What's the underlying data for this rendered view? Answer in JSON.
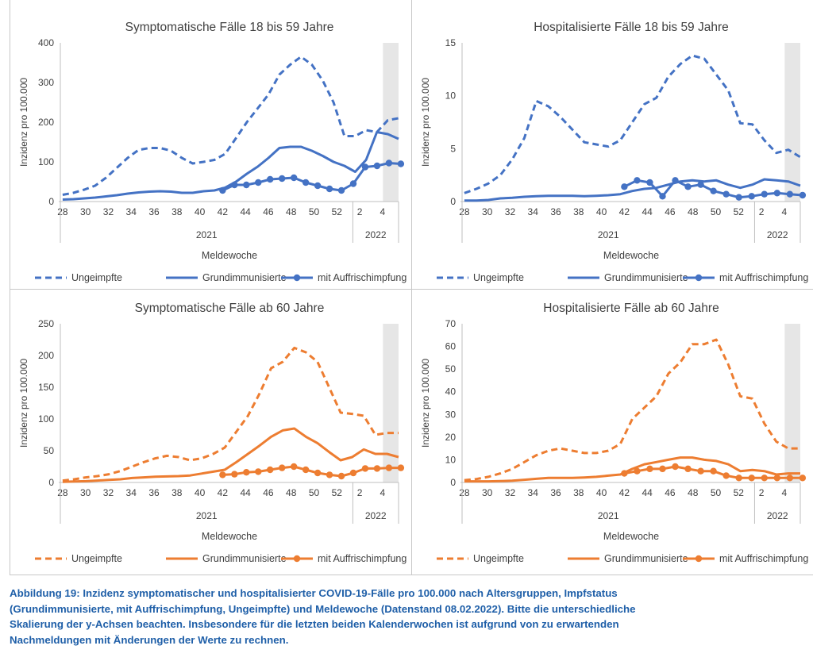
{
  "chart_data": [
    {
      "type": "line",
      "title": "Symptomatische Fälle 18 bis 59 Jahre",
      "ylabel": "Inzidenz pro 100.000",
      "xlabel": "Meldewoche",
      "ylim": [
        0,
        400
      ],
      "yticks": [
        0,
        100,
        200,
        300,
        400
      ],
      "year_labels": [
        "2021",
        "2022"
      ],
      "color": "#4472c4",
      "series": [
        {
          "name": "Ungeimpfte",
          "style": "dashed",
          "values": [
            17,
            22,
            30,
            40,
            60,
            85,
            110,
            130,
            135,
            135,
            128,
            110,
            96,
            100,
            105,
            120,
            160,
            200,
            235,
            270,
            320,
            345,
            365,
            345,
            305,
            250,
            165,
            165,
            180,
            175,
            205,
            210
          ]
        },
        {
          "name": "Grundimmunisierte",
          "style": "solid",
          "values": [
            5,
            6,
            8,
            10,
            13,
            16,
            20,
            23,
            25,
            26,
            25,
            22,
            22,
            26,
            28,
            35,
            50,
            70,
            88,
            110,
            135,
            138,
            138,
            128,
            115,
            100,
            90,
            75,
            105,
            175,
            170,
            158
          ]
        },
        {
          "name": "mit Auffrischimpfung",
          "style": "marker",
          "x_start": 14,
          "values": [
            28,
            42,
            42,
            48,
            56,
            58,
            60,
            48,
            40,
            32,
            28,
            45,
            87,
            90,
            97,
            95
          ]
        }
      ]
    },
    {
      "type": "line",
      "title": "Hospitalisierte Fälle 18 bis 59 Jahre",
      "ylabel": "Inzidenz pro 100.000",
      "xlabel": "Meldewoche",
      "ylim": [
        0,
        15
      ],
      "yticks": [
        0,
        5,
        10,
        15
      ],
      "year_labels": [
        "2021",
        "2022"
      ],
      "color": "#4472c4",
      "series": [
        {
          "name": "Ungeimpfte",
          "style": "dashed",
          "values": [
            0.8,
            1.2,
            1.7,
            2.5,
            4.0,
            6.0,
            9.5,
            9.0,
            8.0,
            6.8,
            5.6,
            5.4,
            5.2,
            5.8,
            7.5,
            9.2,
            9.8,
            11.8,
            13.0,
            13.8,
            13.5,
            12.0,
            10.5,
            7.4,
            7.3,
            5.8,
            4.6,
            4.9,
            4.2
          ]
        },
        {
          "name": "Grundimmunisierte",
          "style": "solid",
          "values": [
            0.1,
            0.1,
            0.15,
            0.3,
            0.35,
            0.45,
            0.5,
            0.55,
            0.55,
            0.55,
            0.5,
            0.55,
            0.6,
            0.7,
            1.0,
            1.2,
            1.3,
            1.6,
            1.9,
            2.0,
            1.9,
            2.0,
            1.6,
            1.3,
            1.6,
            2.1,
            2.0,
            1.9,
            1.5
          ]
        },
        {
          "name": "mit Auffrischimpfung",
          "style": "marker",
          "x_start": 14,
          "values": [
            1.4,
            2.0,
            1.8,
            0.5,
            2.0,
            1.4,
            1.6,
            1.0,
            0.7,
            0.4,
            0.5,
            0.7,
            0.8,
            0.7,
            0.6
          ]
        }
      ]
    },
    {
      "type": "line",
      "title": "Symptomatische Fälle ab 60 Jahre",
      "ylabel": "Inzidenz pro 100.000",
      "xlabel": "Meldewoche",
      "ylim": [
        0,
        250
      ],
      "yticks": [
        0,
        50,
        100,
        150,
        200,
        250
      ],
      "year_labels": [
        "2021",
        "2022"
      ],
      "color": "#ed7d31",
      "series": [
        {
          "name": "Ungeimpfte",
          "style": "dashed",
          "values": [
            3,
            5,
            8,
            10,
            13,
            18,
            25,
            32,
            38,
            42,
            40,
            35,
            38,
            45,
            55,
            80,
            105,
            140,
            180,
            190,
            212,
            205,
            190,
            150,
            110,
            108,
            105,
            75,
            78,
            78
          ]
        },
        {
          "name": "Grundimmunisierte",
          "style": "solid",
          "values": [
            1,
            1.5,
            2,
            3,
            4,
            5,
            7,
            8,
            9,
            9.5,
            10,
            11,
            14,
            17,
            20,
            32,
            45,
            58,
            72,
            82,
            85,
            72,
            62,
            48,
            35,
            40,
            52,
            45,
            45,
            40
          ]
        },
        {
          "name": "mit Auffrischimpfung",
          "style": "marker",
          "x_start": 14,
          "values": [
            12,
            13,
            16,
            17,
            20,
            23,
            25,
            20,
            15,
            12,
            10,
            15,
            22,
            22,
            23,
            23
          ]
        }
      ]
    },
    {
      "type": "line",
      "title": "Hospitalisierte Fälle ab 60 Jahre",
      "ylabel": "Inzidenz pro 100.000",
      "xlabel": "Meldewoche",
      "ylim": [
        0,
        70
      ],
      "yticks": [
        0,
        10,
        20,
        30,
        40,
        50,
        60,
        70
      ],
      "year_labels": [
        "2021",
        "2022"
      ],
      "color": "#ed7d31",
      "series": [
        {
          "name": "Ungeimpfte",
          "style": "dashed",
          "values": [
            1,
            1.5,
            2.5,
            4,
            6,
            9,
            12,
            14,
            15,
            14,
            13,
            13,
            14,
            17,
            28,
            33,
            38,
            48,
            53,
            61,
            61,
            63,
            52,
            38,
            37,
            26,
            18,
            15,
            15
          ]
        },
        {
          "name": "Grundimmunisierte",
          "style": "solid",
          "values": [
            0.5,
            0.5,
            0.5,
            0.6,
            0.8,
            1.2,
            1.6,
            2,
            2,
            2,
            2.2,
            2.5,
            3,
            3.5,
            6,
            8,
            9,
            10,
            11,
            11,
            10,
            9.5,
            8,
            5,
            5.5,
            5,
            3.5,
            4,
            4
          ]
        },
        {
          "name": "mit Auffrischimpfung",
          "style": "marker",
          "x_start": 14,
          "values": [
            4,
            5,
            6,
            6,
            7,
            6,
            5,
            5,
            3,
            2,
            2,
            2,
            2,
            2,
            2
          ]
        }
      ]
    }
  ],
  "x_tick_labels": [
    "28",
    "30",
    "32",
    "34",
    "36",
    "38",
    "40",
    "42",
    "44",
    "46",
    "48",
    "50",
    "52",
    "2",
    "4"
  ],
  "legend": [
    "Ungeimpfte",
    "Grundimmunisierte",
    "mit Auffrischimpfung"
  ],
  "caption": [
    "Abbildung 19: Inzidenz symptomatischer und hospitalisierter COVID-19-Fälle pro 100.000 nach Altersgruppen, Impfstatus",
    "(Grundimmunisierte, mit Auffrischimpfung, Ungeimpfte) und Meldewoche (Datenstand 08.02.2022). Bitte die unterschiedliche",
    "Skalierung der y-Achsen beachten. Insbesondere für die letzten beiden Kalenderwochen ist aufgrund von zu erwartenden",
    "Nachmeldungen mit Änderungen der Werte zu rechnen."
  ]
}
